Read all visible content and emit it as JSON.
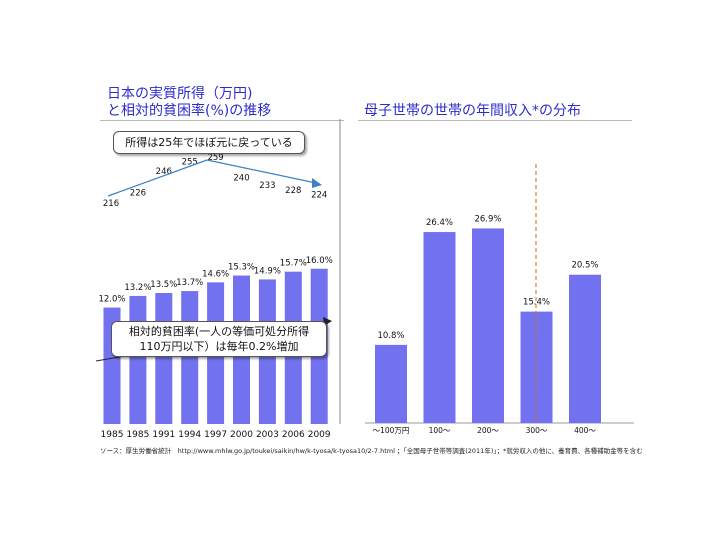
{
  "left_title": {
    "line1": "日本の実質所得（万円)",
    "line2": "と相対的貧困率(%)の推移"
  },
  "right_title": "母子世帯の世帯の年間収入*の分布",
  "callouts": {
    "income": "所得は25年でほぼ元に戻っている",
    "poverty_line1": "相対的貧困率(一人の等価可処分所得",
    "poverty_line2": "110万円以下）は毎年0.2%増加"
  },
  "source": "ソース：厚生労働省統計　http://www.mhlw.go.jp/toukei/saikin/hw/k-tyosa/k-tyosa10/2-7.html ；「全国母子世帯等調査(2011年)」；*就労収入の他に、養育費、各種補助金等を含む",
  "colors": {
    "bar": "#7272f0",
    "title": "#2c2ccf",
    "trend_arrow": "#3a82c8",
    "dashed_line": "#e0701e"
  },
  "chart_data": [
    {
      "type": "line",
      "x": [
        "1985",
        "1985",
        "1991",
        "1994",
        "1997",
        "2000",
        "2003",
        "2006",
        "2009"
      ],
      "values": [
        216,
        226,
        246,
        255,
        259,
        240,
        233,
        228,
        224
      ],
      "data_labels": [
        "216",
        "226",
        "246",
        "255",
        "259",
        "240",
        "233",
        "228",
        "224"
      ],
      "title": "",
      "xlabel": "",
      "ylabel": "",
      "ylim": [
        200,
        270
      ],
      "grid": false
    },
    {
      "type": "bar",
      "categories": [
        "1985",
        "1985",
        "1991",
        "1994",
        "1997",
        "2000",
        "2003",
        "2006",
        "2009"
      ],
      "values": [
        12.0,
        13.2,
        13.5,
        13.7,
        14.6,
        15.3,
        14.9,
        15.7,
        16.0
      ],
      "data_labels": [
        "12.0%",
        "13.2%",
        "13.5%",
        "13.7%",
        "14.6%",
        "15.3%",
        "14.9%",
        "15.7%",
        "16.0%"
      ],
      "title": "",
      "xlabel": "",
      "ylabel": "",
      "ylim": [
        0,
        16.8
      ],
      "grid": false
    },
    {
      "type": "bar",
      "categories": [
        "～100万円",
        "100～",
        "200～",
        "300～",
        "400～"
      ],
      "values": [
        10.8,
        26.4,
        26.9,
        15.4,
        20.5
      ],
      "data_labels": [
        "10.8%",
        "26.4%",
        "26.9%",
        "15.4%",
        "20.5%"
      ],
      "title": "",
      "xlabel": "",
      "ylabel": "",
      "ylim": [
        0,
        30
      ],
      "grid": false
    }
  ]
}
